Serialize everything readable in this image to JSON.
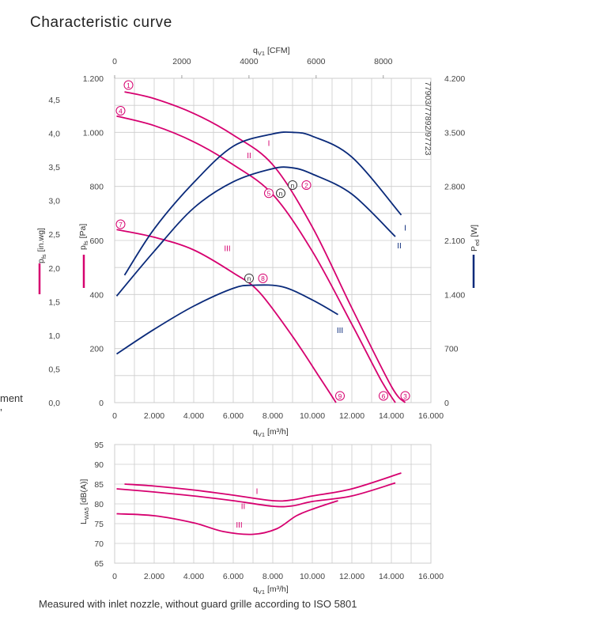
{
  "title": "Characteristic curve",
  "side_clip": [
    "ment",
    "’"
  ],
  "footnote": "Measured with inlet nozzle, without guard grille according to ISO 5801",
  "colors": {
    "pressure": "#d6006f",
    "power": "#0a2a7a",
    "grid": "#cccccc"
  },
  "chart_data": [
    {
      "type": "line",
      "name": "pressure-power",
      "model_label": "77903/77892/97723",
      "x_label": {
        "main": "q",
        "sub": "V1",
        "unit": " [m³/h]"
      },
      "x_top_label": {
        "main": "q",
        "sub": "V1",
        "unit": " [CFM]"
      },
      "y_left_outer_label": {
        "main": "p",
        "sub": "fs",
        "unit": " [in.wg]"
      },
      "y_left_label": {
        "main": "p",
        "sub": "fs",
        "unit": " [Pa]"
      },
      "y_right_label": {
        "main": "P",
        "sub": "ed",
        "unit": " [W]"
      },
      "xlim": [
        0,
        16000
      ],
      "ylim": [
        0,
        1200
      ],
      "y_right_lim": [
        0,
        4200
      ],
      "x_ticks": [
        0,
        2000,
        4000,
        6000,
        8000,
        10000,
        12000,
        14000,
        16000
      ],
      "x_tick_labels": [
        "0",
        "2.000",
        "4.000",
        "6.000",
        "8.000",
        "10.000",
        "12.000",
        "14.000",
        "16.000"
      ],
      "x_top_ticks_cfm": [
        0,
        2000,
        4000,
        6000,
        8000
      ],
      "x_top_tick_labels": [
        "0",
        "2000",
        "4000",
        "6000",
        "8000"
      ],
      "y_ticks": [
        0,
        200,
        400,
        600,
        800,
        1000,
        1200
      ],
      "y_tick_labels": [
        "0",
        "200",
        "400",
        "600",
        "800",
        "1.000",
        "1.200"
      ],
      "y_outer_ticks_inwg": [
        0,
        0.5,
        1.0,
        1.5,
        2.0,
        2.5,
        3.0,
        3.5,
        4.0,
        4.5
      ],
      "y_outer_tick_labels": [
        "0,0",
        "0,5",
        "1,0",
        "1,5",
        "2,0",
        "2,5",
        "3,0",
        "3,5",
        "4,0",
        "4,5"
      ],
      "y_right_ticks": [
        0,
        700,
        1400,
        2100,
        2800,
        3500,
        4200
      ],
      "y_right_tick_labels": [
        "0",
        "700",
        "1.400",
        "2.100",
        "2.800",
        "3.500",
        "4.200"
      ],
      "pressure_series": [
        {
          "name": "I",
          "points": [
            [
              500,
              1150
            ],
            [
              2000,
              1125
            ],
            [
              4000,
              1070
            ],
            [
              6000,
              990
            ],
            [
              8000,
              880
            ],
            [
              10000,
              650
            ],
            [
              12000,
              350
            ],
            [
              14000,
              60
            ],
            [
              14700,
              0
            ]
          ]
        },
        {
          "name": "II",
          "points": [
            [
              100,
              1060
            ],
            [
              2000,
              1025
            ],
            [
              4000,
              965
            ],
            [
              6000,
              880
            ],
            [
              8000,
              770
            ],
            [
              10000,
              560
            ],
            [
              12000,
              290
            ],
            [
              13500,
              80
            ],
            [
              14200,
              0
            ]
          ]
        },
        {
          "name": "III",
          "points": [
            [
              100,
              640
            ],
            [
              2000,
              612
            ],
            [
              4000,
              565
            ],
            [
              6000,
              480
            ],
            [
              7300,
              410
            ],
            [
              9000,
              245
            ],
            [
              10400,
              90
            ],
            [
              11200,
              0
            ]
          ]
        }
      ],
      "power_series": [
        {
          "name": "I",
          "points": [
            [
              500,
              1650
            ],
            [
              2000,
              2250
            ],
            [
              4000,
              2850
            ],
            [
              6000,
              3320
            ],
            [
              8000,
              3480
            ],
            [
              9000,
              3500
            ],
            [
              10000,
              3450
            ],
            [
              12000,
              3180
            ],
            [
              14500,
              2430
            ]
          ]
        },
        {
          "name": "II",
          "points": [
            [
              100,
              1380
            ],
            [
              2000,
              1960
            ],
            [
              4000,
              2520
            ],
            [
              6000,
              2860
            ],
            [
              8000,
              3030
            ],
            [
              9000,
              3040
            ],
            [
              10000,
              2960
            ],
            [
              12000,
              2700
            ],
            [
              14200,
              2150
            ]
          ]
        },
        {
          "name": "III",
          "points": [
            [
              100,
              630
            ],
            [
              2000,
              950
            ],
            [
              4000,
              1250
            ],
            [
              6000,
              1480
            ],
            [
              7000,
              1520
            ],
            [
              8500,
              1500
            ],
            [
              10000,
              1330
            ],
            [
              11300,
              1140
            ]
          ]
        }
      ],
      "pressure_labels": [
        {
          "text": "I",
          "x": 7800,
          "y": 950
        },
        {
          "text": "II",
          "x": 6800,
          "y": 905
        },
        {
          "text": "III",
          "x": 5700,
          "y": 560
        }
      ],
      "power_labels": [
        {
          "text": "I",
          "x": 14700,
          "y": 2230
        },
        {
          "text": "II",
          "x": 14400,
          "y": 2000
        },
        {
          "text": "III",
          "x": 11400,
          "y": 900
        }
      ],
      "operating_points": [
        {
          "text": "1",
          "x": 700,
          "y": 1175,
          "style": "pressure"
        },
        {
          "text": "4",
          "x": 300,
          "y": 1080,
          "style": "pressure"
        },
        {
          "text": "7",
          "x": 300,
          "y": 660,
          "style": "pressure"
        },
        {
          "text": "2",
          "x": 9700,
          "y": 805,
          "style": "pressure"
        },
        {
          "text": "5",
          "x": 7800,
          "y": 775,
          "style": "pressure"
        },
        {
          "text": "8",
          "x": 7500,
          "y": 460,
          "style": "pressure"
        },
        {
          "text": "3",
          "x": 14700,
          "y": 25,
          "style": "pressure"
        },
        {
          "text": "6",
          "x": 13600,
          "y": 25,
          "style": "pressure"
        },
        {
          "text": "9",
          "x": 11400,
          "y": 25,
          "style": "pressure"
        },
        {
          "text": "n",
          "x": 9000,
          "y": 805,
          "style": "neutral"
        },
        {
          "text": "n",
          "x": 8400,
          "y": 775,
          "style": "neutral"
        },
        {
          "text": "n",
          "x": 6800,
          "y": 460,
          "style": "neutral"
        }
      ]
    },
    {
      "type": "line",
      "name": "sound-power",
      "x_label": {
        "main": "q",
        "sub": "V1",
        "unit": " [m³/h]"
      },
      "y_label": {
        "main": "L",
        "sub": "WA5",
        "unit": " [dB(A)]"
      },
      "xlim": [
        0,
        16000
      ],
      "ylim": [
        65,
        95
      ],
      "x_ticks": [
        0,
        2000,
        4000,
        6000,
        8000,
        10000,
        12000,
        14000,
        16000
      ],
      "x_tick_labels": [
        "0",
        "2.000",
        "4.000",
        "6.000",
        "8.000",
        "10.000",
        "12.000",
        "14.000",
        "16.000"
      ],
      "y_ticks": [
        65,
        70,
        75,
        80,
        85,
        90,
        95
      ],
      "y_tick_labels": [
        "65",
        "70",
        "75",
        "80",
        "85",
        "90",
        "95"
      ],
      "series": [
        {
          "name": "I",
          "points": [
            [
              500,
              85.0
            ],
            [
              2000,
              84.5
            ],
            [
              4000,
              83.5
            ],
            [
              6000,
              82.2
            ],
            [
              8000,
              80.8
            ],
            [
              9000,
              81.0
            ],
            [
              10000,
              82.0
            ],
            [
              12000,
              83.8
            ],
            [
              14500,
              87.8
            ]
          ]
        },
        {
          "name": "II",
          "points": [
            [
              100,
              83.8
            ],
            [
              2000,
              83.0
            ],
            [
              4000,
              82.0
            ],
            [
              6000,
              80.8
            ],
            [
              8000,
              79.4
            ],
            [
              9000,
              79.5
            ],
            [
              10000,
              80.6
            ],
            [
              12000,
              82.0
            ],
            [
              14200,
              85.3
            ]
          ]
        },
        {
          "name": "III",
          "points": [
            [
              100,
              77.5
            ],
            [
              2000,
              77.0
            ],
            [
              4000,
              75.2
            ],
            [
              5500,
              73.0
            ],
            [
              7000,
              72.3
            ],
            [
              8200,
              73.7
            ],
            [
              9200,
              77.0
            ],
            [
              10200,
              79.0
            ],
            [
              11300,
              80.8
            ]
          ]
        }
      ],
      "series_labels": [
        {
          "text": "I",
          "x": 7200,
          "y": 82.5
        },
        {
          "text": "II",
          "x": 6500,
          "y": 78.7
        },
        {
          "text": "III",
          "x": 6300,
          "y": 74.0
        }
      ]
    }
  ]
}
